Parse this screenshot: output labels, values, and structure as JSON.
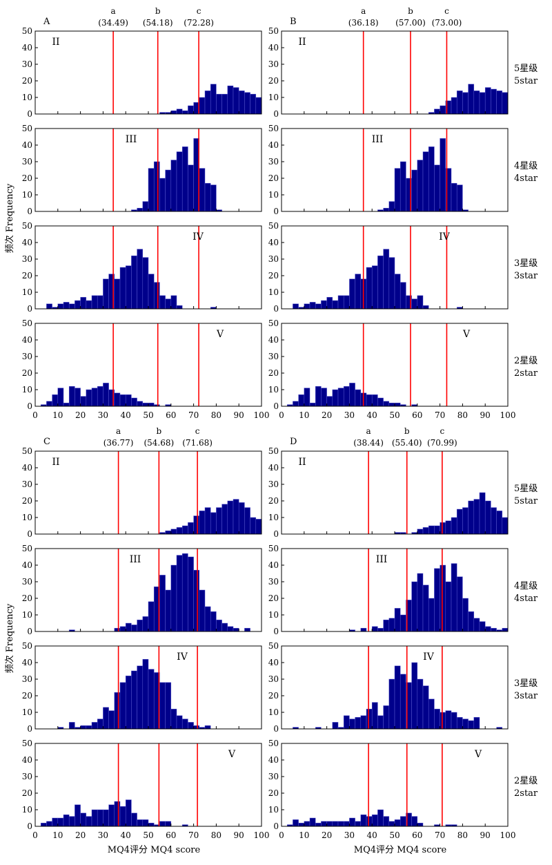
{
  "chart_data": {
    "type": "bar",
    "xlabel": "MQ4评分 MQ4 score",
    "ylabel": "频次 Frequency",
    "xlim": [
      0,
      100
    ],
    "ylim": [
      0,
      50
    ],
    "x_ticks": [
      "0",
      "10",
      "20",
      "30",
      "40",
      "50",
      "60",
      "70",
      "80",
      "90",
      "100"
    ],
    "y_ticks": [
      "0",
      "10",
      "20",
      "30",
      "40",
      "50"
    ],
    "bin_width": 2.5,
    "bar_color": "#00008b",
    "cut_line_color": "#ff0000",
    "rows": [
      {
        "label_cn": "5星级",
        "label_en": "5star",
        "roman": "II"
      },
      {
        "label_cn": "4星级",
        "label_en": "4star",
        "roman": "III"
      },
      {
        "label_cn": "3星级",
        "label_en": "3star",
        "roman": "IV"
      },
      {
        "label_cn": "2星级",
        "label_en": "2star",
        "roman": "V"
      }
    ],
    "panels": [
      {
        "letter": "A",
        "cuts": [
          {
            "name": "a",
            "label": "(34.49)",
            "value": 34.49
          },
          {
            "name": "b",
            "label": "(54.18)",
            "value": 54.18
          },
          {
            "name": "c",
            "label": "(72.28)",
            "value": 72.28
          }
        ],
        "series": [
          {
            "star": "5星级",
            "bin_start": 50,
            "counts": [
              0,
              0,
              1,
              1,
              2,
              3,
              2,
              5,
              7,
              10,
              14,
              18,
              12,
              12,
              17,
              16,
              14,
              13,
              12,
              10,
              9,
              10,
              9,
              4,
              2
            ]
          },
          {
            "star": "4星级",
            "bin_start": 40,
            "counts": [
              0,
              1,
              2,
              6,
              26,
              30,
              20,
              25,
              31,
              36,
              39,
              28,
              44,
              26,
              17,
              16,
              1,
              0,
              0,
              0,
              0,
              0,
              0,
              0,
              0
            ]
          },
          {
            "star": "3星级",
            "bin_start": 5,
            "counts": [
              3,
              1,
              3,
              4,
              3,
              5,
              7,
              5,
              8,
              8,
              18,
              21,
              18,
              25,
              26,
              32,
              36,
              31,
              21,
              16,
              8,
              6,
              8,
              2,
              0,
              0,
              0,
              0,
              0,
              1
            ]
          },
          {
            "star": "2星级",
            "bin_start": 0,
            "counts": [
              0,
              1,
              3,
              7,
              11,
              2,
              12,
              11,
              6,
              10,
              11,
              12,
              14,
              10,
              8,
              7,
              7,
              5,
              3,
              2,
              2,
              1,
              0,
              1,
              0,
              0,
              0,
              0,
              0,
              0,
              0,
              0,
              0
            ]
          }
        ]
      },
      {
        "letter": "B",
        "cuts": [
          {
            "name": "a",
            "label": "(36.18)",
            "value": 36.18
          },
          {
            "name": "b",
            "label": "(57.00)",
            "value": 57.0
          },
          {
            "name": "c",
            "label": "(73.00)",
            "value": 73.0
          }
        ],
        "series": [
          {
            "star": "5星级",
            "bin_start": 50,
            "counts": [
              0,
              0,
              0,
              0,
              0,
              0,
              1,
              3,
              5,
              8,
              10,
              14,
              13,
              18,
              14,
              13,
              16,
              15,
              14,
              13,
              10,
              9,
              9,
              10,
              4
            ]
          },
          {
            "star": "4星级",
            "bin_start": 40,
            "counts": [
              0,
              1,
              2,
              6,
              26,
              30,
              20,
              25,
              31,
              36,
              39,
              28,
              44,
              26,
              17,
              16,
              1,
              0,
              0,
              0,
              0,
              0,
              0,
              0,
              0
            ]
          },
          {
            "star": "3星级",
            "bin_start": 5,
            "counts": [
              3,
              1,
              3,
              4,
              3,
              5,
              7,
              5,
              8,
              8,
              18,
              21,
              18,
              25,
              26,
              32,
              36,
              31,
              21,
              16,
              8,
              6,
              8,
              2,
              0,
              0,
              0,
              0,
              0,
              1
            ]
          },
          {
            "star": "2星级",
            "bin_start": 0,
            "counts": [
              0,
              1,
              3,
              7,
              11,
              2,
              12,
              11,
              6,
              10,
              11,
              12,
              14,
              10,
              8,
              7,
              7,
              5,
              3,
              2,
              2,
              1,
              0,
              1,
              0,
              0,
              0,
              0,
              0,
              0,
              0,
              0,
              0
            ]
          }
        ]
      },
      {
        "letter": "C",
        "cuts": [
          {
            "name": "a",
            "label": "(36.77)",
            "value": 36.77
          },
          {
            "name": "b",
            "label": "(54.68)",
            "value": 54.68
          },
          {
            "name": "c",
            "label": "(71.68)",
            "value": 71.68
          }
        ],
        "series": [
          {
            "star": "5星级",
            "bin_start": 55,
            "counts": [
              1,
              2,
              3,
              4,
              5,
              7,
              11,
              14,
              16,
              13,
              16,
              18,
              20,
              21,
              19,
              16,
              10,
              9,
              8,
              7,
              6,
              5
            ]
          },
          {
            "star": "4星级",
            "bin_start": 15,
            "counts": [
              1,
              0,
              0,
              0,
              0,
              0,
              0,
              0,
              2,
              3,
              5,
              4,
              7,
              9,
              18,
              27,
              34,
              25,
              40,
              46,
              47,
              45,
              37,
              25,
              15,
              12,
              7,
              5,
              3,
              2,
              0,
              2
            ]
          },
          {
            "star": "3星级",
            "bin_start": 10,
            "counts": [
              1,
              0,
              4,
              1,
              2,
              2,
              4,
              6,
              13,
              11,
              22,
              28,
              32,
              35,
              38,
              42,
              36,
              34,
              28,
              28,
              12,
              8,
              6,
              4,
              2,
              1,
              2,
              0,
              0
            ]
          },
          {
            "star": "2星级",
            "bin_start": 2.5,
            "counts": [
              2,
              3,
              5,
              5,
              7,
              6,
              13,
              8,
              6,
              10,
              10,
              10,
              13,
              15,
              12,
              16,
              8,
              4,
              4,
              2,
              1,
              3,
              3,
              0,
              0,
              1,
              0,
              0,
              0,
              0,
              0,
              0,
              0,
              0,
              0,
              0,
              0,
              0,
              0
            ]
          }
        ]
      },
      {
        "letter": "D",
        "cuts": [
          {
            "name": "a",
            "label": "(38.44)",
            "value": 38.44
          },
          {
            "name": "b",
            "label": "(55.40)",
            "value": 55.4
          },
          {
            "name": "c",
            "label": "(70.99)",
            "value": 70.99
          }
        ],
        "series": [
          {
            "star": "5星级",
            "bin_start": 45,
            "counts": [
              0,
              0,
              1,
              1,
              0,
              1,
              3,
              4,
              5,
              5,
              7,
              8,
              10,
              15,
              16,
              20,
              21,
              25,
              20,
              16,
              14,
              10,
              13,
              11,
              6,
              3
            ]
          },
          {
            "star": "4星级",
            "bin_start": 30,
            "counts": [
              1,
              0,
              2,
              0,
              3,
              2,
              7,
              8,
              14,
              10,
              19,
              30,
              35,
              28,
              20,
              38,
              40,
              30,
              41,
              33,
              20,
              12,
              8,
              6,
              3,
              2,
              1,
              2
            ]
          },
          {
            "star": "3星级",
            "bin_start": 5,
            "counts": [
              1,
              0,
              0,
              0,
              1,
              0,
              0,
              4,
              1,
              8,
              6,
              7,
              8,
              12,
              16,
              8,
              14,
              30,
              38,
              33,
              28,
              40,
              30,
              26,
              18,
              12,
              10,
              11,
              10,
              7,
              6,
              5,
              7,
              0,
              0,
              0,
              1,
              0,
              1
            ]
          },
          {
            "star": "2星级",
            "bin_start": 2.5,
            "counts": [
              1,
              4,
              2,
              3,
              5,
              2,
              3,
              3,
              3,
              3,
              3,
              5,
              3,
              7,
              6,
              7,
              10,
              6,
              3,
              4,
              6,
              8,
              6,
              2,
              0,
              0,
              1,
              0,
              1,
              1,
              0,
              0,
              0,
              0,
              0,
              0,
              0,
              0,
              0
            ]
          }
        ]
      }
    ]
  }
}
